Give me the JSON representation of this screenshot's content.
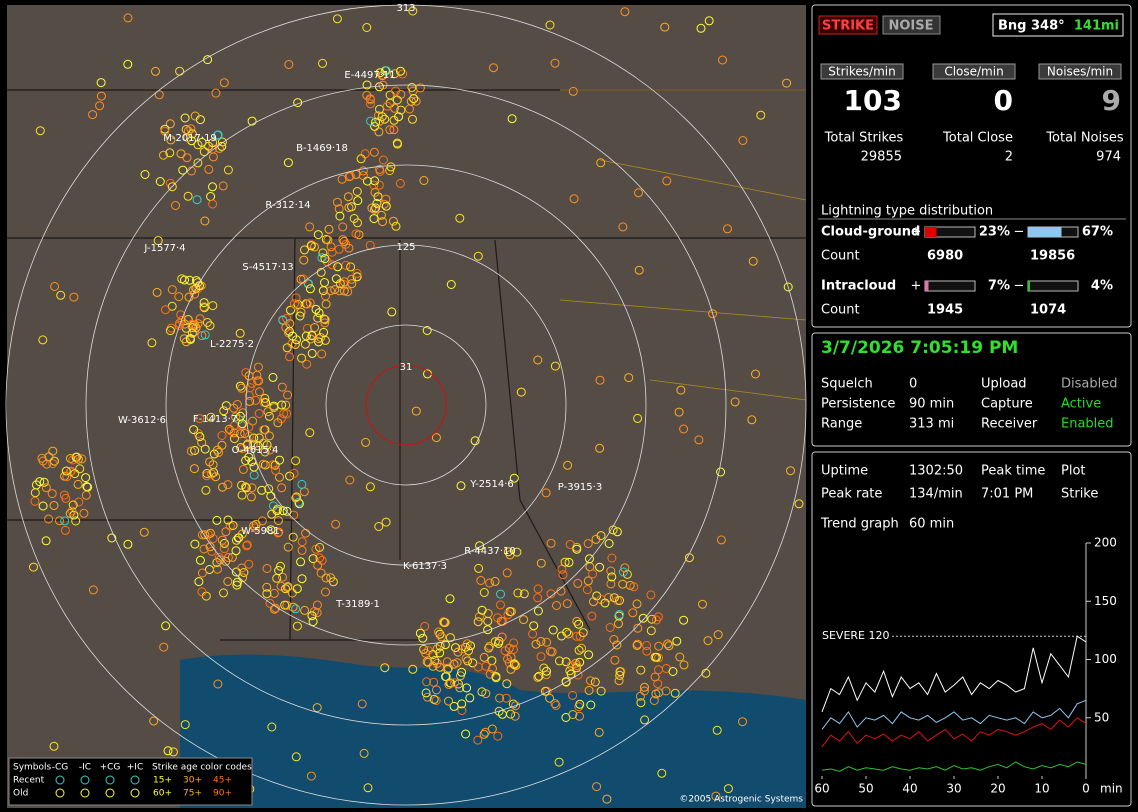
{
  "map": {
    "ring_labels": [
      "313",
      "125",
      "31"
    ],
    "storm_labels": [
      "E-4497·11",
      "M-2017·19",
      "B-1469·18",
      "R-312·14",
      "J-1577·4",
      "S-4517·13",
      "L-2275·2",
      "W-3612·6",
      "F-1413·7",
      "O-4615·4",
      "W-5981·",
      "Y-2514·6",
      "P-3915·3",
      "R-4437·10",
      "K-6137·3",
      "T-3189·1"
    ],
    "copyright": "©2005 Astrogenic Systems",
    "legend": {
      "symbols_title": "Symbols",
      "symbol_headers": [
        "-CG",
        "-IC",
        "+CG",
        "+IC"
      ],
      "age_title": "Strike age color codes",
      "rows": [
        {
          "label": "Recent",
          "ages": [
            "15+",
            "30+",
            "45+"
          ]
        },
        {
          "label": "Old",
          "ages": [
            "60+",
            "75+",
            "90+"
          ]
        }
      ]
    }
  },
  "mode_buttons": [
    "STRIKE",
    "NOISE"
  ],
  "bearing": "Bng 348°",
  "distance": "141mi",
  "rates": [
    {
      "label": "Strikes/min",
      "value": 103
    },
    {
      "label": "Close/min",
      "value": 0
    },
    {
      "label": "Noises/min",
      "value": 9
    }
  ],
  "totals": [
    {
      "label": "Total Strikes",
      "value": 29855
    },
    {
      "label": "Total Close",
      "value": 2
    },
    {
      "label": "Total Noises",
      "value": 974
    }
  ],
  "distribution": {
    "title": "Lightning type distribution",
    "rows": [
      {
        "label": "Cloud-ground",
        "count_label": "Count",
        "items": [
          {
            "sign": "+",
            "percent": 23,
            "percent_label": "23%",
            "color": "#e00000",
            "count": 6980
          },
          {
            "sign": "−",
            "percent": 67,
            "percent_label": "67%",
            "color": "#8ec8f0",
            "count": 19856
          }
        ]
      },
      {
        "label": "Intracloud",
        "count_label": "Count",
        "items": [
          {
            "sign": "+",
            "percent": 7,
            "percent_label": "7%",
            "color": "#e070b0",
            "count": 1945
          },
          {
            "sign": "−",
            "percent": 4,
            "percent_label": "4%",
            "color": "#30c030",
            "count": 1074
          }
        ]
      }
    ]
  },
  "datetime": "3/7/2026 7:05:19 PM",
  "settings": [
    {
      "label": "Squelch",
      "value": "0"
    },
    {
      "label": "Persistence",
      "value": "90 min"
    },
    {
      "label": "Range",
      "value": "313 mi"
    }
  ],
  "status": [
    {
      "label": "Upload",
      "value": "Disabled",
      "color": "#aaaaaa"
    },
    {
      "label": "Capture",
      "value": "Active",
      "color": "#22dd22"
    },
    {
      "label": "Receiver",
      "value": "Enabled",
      "color": "#22dd22"
    }
  ],
  "stats": {
    "uptime": {
      "label": "Uptime",
      "value": "1302:50"
    },
    "peak_rate": {
      "label": "Peak rate",
      "value": "134/min"
    },
    "peak_time": {
      "label": "Peak time",
      "value": "7:01 PM"
    },
    "plot": {
      "label": "Plot",
      "value": "Strike"
    },
    "trend": {
      "label": "Trend graph",
      "value": "60 min"
    }
  },
  "chart_data": {
    "type": "line",
    "x": [
      60,
      58,
      56,
      54,
      52,
      50,
      48,
      46,
      44,
      42,
      40,
      38,
      36,
      34,
      32,
      30,
      28,
      26,
      24,
      22,
      20,
      18,
      16,
      14,
      12,
      10,
      8,
      6,
      4,
      2,
      0
    ],
    "xlim": [
      60,
      0
    ],
    "xticks": [
      60,
      50,
      40,
      30,
      20,
      10,
      0
    ],
    "xlabel": "min",
    "ylim": [
      0,
      200
    ],
    "yticks": [
      50,
      100,
      150,
      200
    ],
    "threshold": {
      "value": 120,
      "label": "SEVERE 120"
    },
    "series": [
      {
        "color": "#ffffff",
        "values": [
          55,
          75,
          70,
          85,
          65,
          80,
          72,
          90,
          68,
          85,
          75,
          80,
          70,
          88,
          72,
          78,
          85,
          70,
          80,
          75,
          82,
          78,
          72,
          75,
          110,
          80,
          105,
          95,
          85,
          120,
          115
        ]
      },
      {
        "color": "#8ec8f0",
        "values": [
          40,
          50,
          45,
          55,
          42,
          50,
          48,
          52,
          45,
          55,
          50,
          48,
          52,
          46,
          50,
          55,
          48,
          50,
          45,
          52,
          50,
          48,
          50,
          45,
          55,
          50,
          52,
          58,
          50,
          62,
          65
        ]
      },
      {
        "color": "#e01010",
        "values": [
          25,
          35,
          30,
          38,
          28,
          35,
          32,
          36,
          30,
          35,
          32,
          38,
          30,
          35,
          40,
          32,
          36,
          30,
          38,
          35,
          40,
          38,
          35,
          38,
          42,
          45,
          40,
          48,
          42,
          50,
          45
        ]
      },
      {
        "color": "#30c030",
        "values": [
          5,
          6,
          4,
          8,
          5,
          7,
          6,
          5,
          8,
          6,
          5,
          7,
          6,
          8,
          5,
          9,
          6,
          7,
          5,
          8,
          10,
          7,
          12,
          8,
          6,
          9,
          7,
          10,
          8,
          12,
          10
        ]
      }
    ]
  }
}
